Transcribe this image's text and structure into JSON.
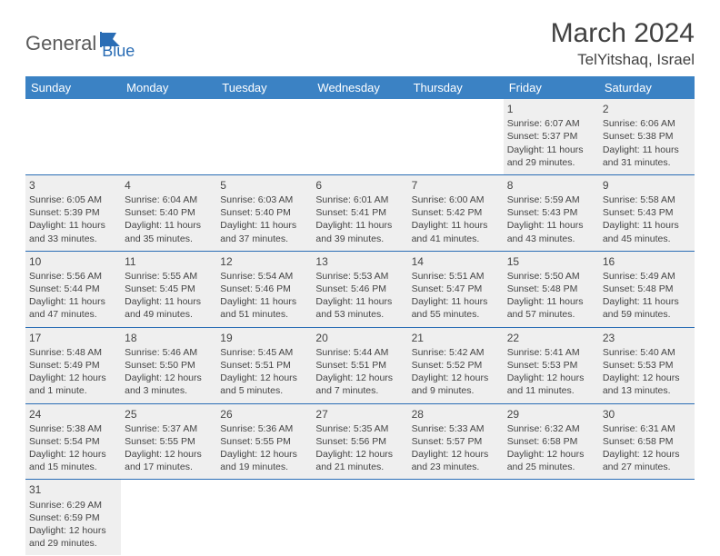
{
  "logo": {
    "general": "General",
    "blue": "Blue"
  },
  "title": "March 2024",
  "subtitle": "TelYitshaq, Israel",
  "colors": {
    "header_bg": "#3b82c4",
    "header_text": "#ffffff",
    "row_bg": "#efefef",
    "border": "#2a6db5",
    "logo_blue": "#2a6db5",
    "logo_gray": "#5a5a5a"
  },
  "dayHeaders": [
    "Sunday",
    "Monday",
    "Tuesday",
    "Wednesday",
    "Thursday",
    "Friday",
    "Saturday"
  ],
  "weeks": [
    [
      null,
      null,
      null,
      null,
      null,
      {
        "n": "1",
        "sr": "Sunrise: 6:07 AM",
        "ss": "Sunset: 5:37 PM",
        "d1": "Daylight: 11 hours",
        "d2": "and 29 minutes."
      },
      {
        "n": "2",
        "sr": "Sunrise: 6:06 AM",
        "ss": "Sunset: 5:38 PM",
        "d1": "Daylight: 11 hours",
        "d2": "and 31 minutes."
      }
    ],
    [
      {
        "n": "3",
        "sr": "Sunrise: 6:05 AM",
        "ss": "Sunset: 5:39 PM",
        "d1": "Daylight: 11 hours",
        "d2": "and 33 minutes."
      },
      {
        "n": "4",
        "sr": "Sunrise: 6:04 AM",
        "ss": "Sunset: 5:40 PM",
        "d1": "Daylight: 11 hours",
        "d2": "and 35 minutes."
      },
      {
        "n": "5",
        "sr": "Sunrise: 6:03 AM",
        "ss": "Sunset: 5:40 PM",
        "d1": "Daylight: 11 hours",
        "d2": "and 37 minutes."
      },
      {
        "n": "6",
        "sr": "Sunrise: 6:01 AM",
        "ss": "Sunset: 5:41 PM",
        "d1": "Daylight: 11 hours",
        "d2": "and 39 minutes."
      },
      {
        "n": "7",
        "sr": "Sunrise: 6:00 AM",
        "ss": "Sunset: 5:42 PM",
        "d1": "Daylight: 11 hours",
        "d2": "and 41 minutes."
      },
      {
        "n": "8",
        "sr": "Sunrise: 5:59 AM",
        "ss": "Sunset: 5:43 PM",
        "d1": "Daylight: 11 hours",
        "d2": "and 43 minutes."
      },
      {
        "n": "9",
        "sr": "Sunrise: 5:58 AM",
        "ss": "Sunset: 5:43 PM",
        "d1": "Daylight: 11 hours",
        "d2": "and 45 minutes."
      }
    ],
    [
      {
        "n": "10",
        "sr": "Sunrise: 5:56 AM",
        "ss": "Sunset: 5:44 PM",
        "d1": "Daylight: 11 hours",
        "d2": "and 47 minutes."
      },
      {
        "n": "11",
        "sr": "Sunrise: 5:55 AM",
        "ss": "Sunset: 5:45 PM",
        "d1": "Daylight: 11 hours",
        "d2": "and 49 minutes."
      },
      {
        "n": "12",
        "sr": "Sunrise: 5:54 AM",
        "ss": "Sunset: 5:46 PM",
        "d1": "Daylight: 11 hours",
        "d2": "and 51 minutes."
      },
      {
        "n": "13",
        "sr": "Sunrise: 5:53 AM",
        "ss": "Sunset: 5:46 PM",
        "d1": "Daylight: 11 hours",
        "d2": "and 53 minutes."
      },
      {
        "n": "14",
        "sr": "Sunrise: 5:51 AM",
        "ss": "Sunset: 5:47 PM",
        "d1": "Daylight: 11 hours",
        "d2": "and 55 minutes."
      },
      {
        "n": "15",
        "sr": "Sunrise: 5:50 AM",
        "ss": "Sunset: 5:48 PM",
        "d1": "Daylight: 11 hours",
        "d2": "and 57 minutes."
      },
      {
        "n": "16",
        "sr": "Sunrise: 5:49 AM",
        "ss": "Sunset: 5:48 PM",
        "d1": "Daylight: 11 hours",
        "d2": "and 59 minutes."
      }
    ],
    [
      {
        "n": "17",
        "sr": "Sunrise: 5:48 AM",
        "ss": "Sunset: 5:49 PM",
        "d1": "Daylight: 12 hours",
        "d2": "and 1 minute."
      },
      {
        "n": "18",
        "sr": "Sunrise: 5:46 AM",
        "ss": "Sunset: 5:50 PM",
        "d1": "Daylight: 12 hours",
        "d2": "and 3 minutes."
      },
      {
        "n": "19",
        "sr": "Sunrise: 5:45 AM",
        "ss": "Sunset: 5:51 PM",
        "d1": "Daylight: 12 hours",
        "d2": "and 5 minutes."
      },
      {
        "n": "20",
        "sr": "Sunrise: 5:44 AM",
        "ss": "Sunset: 5:51 PM",
        "d1": "Daylight: 12 hours",
        "d2": "and 7 minutes."
      },
      {
        "n": "21",
        "sr": "Sunrise: 5:42 AM",
        "ss": "Sunset: 5:52 PM",
        "d1": "Daylight: 12 hours",
        "d2": "and 9 minutes."
      },
      {
        "n": "22",
        "sr": "Sunrise: 5:41 AM",
        "ss": "Sunset: 5:53 PM",
        "d1": "Daylight: 12 hours",
        "d2": "and 11 minutes."
      },
      {
        "n": "23",
        "sr": "Sunrise: 5:40 AM",
        "ss": "Sunset: 5:53 PM",
        "d1": "Daylight: 12 hours",
        "d2": "and 13 minutes."
      }
    ],
    [
      {
        "n": "24",
        "sr": "Sunrise: 5:38 AM",
        "ss": "Sunset: 5:54 PM",
        "d1": "Daylight: 12 hours",
        "d2": "and 15 minutes."
      },
      {
        "n": "25",
        "sr": "Sunrise: 5:37 AM",
        "ss": "Sunset: 5:55 PM",
        "d1": "Daylight: 12 hours",
        "d2": "and 17 minutes."
      },
      {
        "n": "26",
        "sr": "Sunrise: 5:36 AM",
        "ss": "Sunset: 5:55 PM",
        "d1": "Daylight: 12 hours",
        "d2": "and 19 minutes."
      },
      {
        "n": "27",
        "sr": "Sunrise: 5:35 AM",
        "ss": "Sunset: 5:56 PM",
        "d1": "Daylight: 12 hours",
        "d2": "and 21 minutes."
      },
      {
        "n": "28",
        "sr": "Sunrise: 5:33 AM",
        "ss": "Sunset: 5:57 PM",
        "d1": "Daylight: 12 hours",
        "d2": "and 23 minutes."
      },
      {
        "n": "29",
        "sr": "Sunrise: 6:32 AM",
        "ss": "Sunset: 6:58 PM",
        "d1": "Daylight: 12 hours",
        "d2": "and 25 minutes."
      },
      {
        "n": "30",
        "sr": "Sunrise: 6:31 AM",
        "ss": "Sunset: 6:58 PM",
        "d1": "Daylight: 12 hours",
        "d2": "and 27 minutes."
      }
    ],
    [
      {
        "n": "31",
        "sr": "Sunrise: 6:29 AM",
        "ss": "Sunset: 6:59 PM",
        "d1": "Daylight: 12 hours",
        "d2": "and 29 minutes."
      },
      null,
      null,
      null,
      null,
      null,
      null
    ]
  ]
}
